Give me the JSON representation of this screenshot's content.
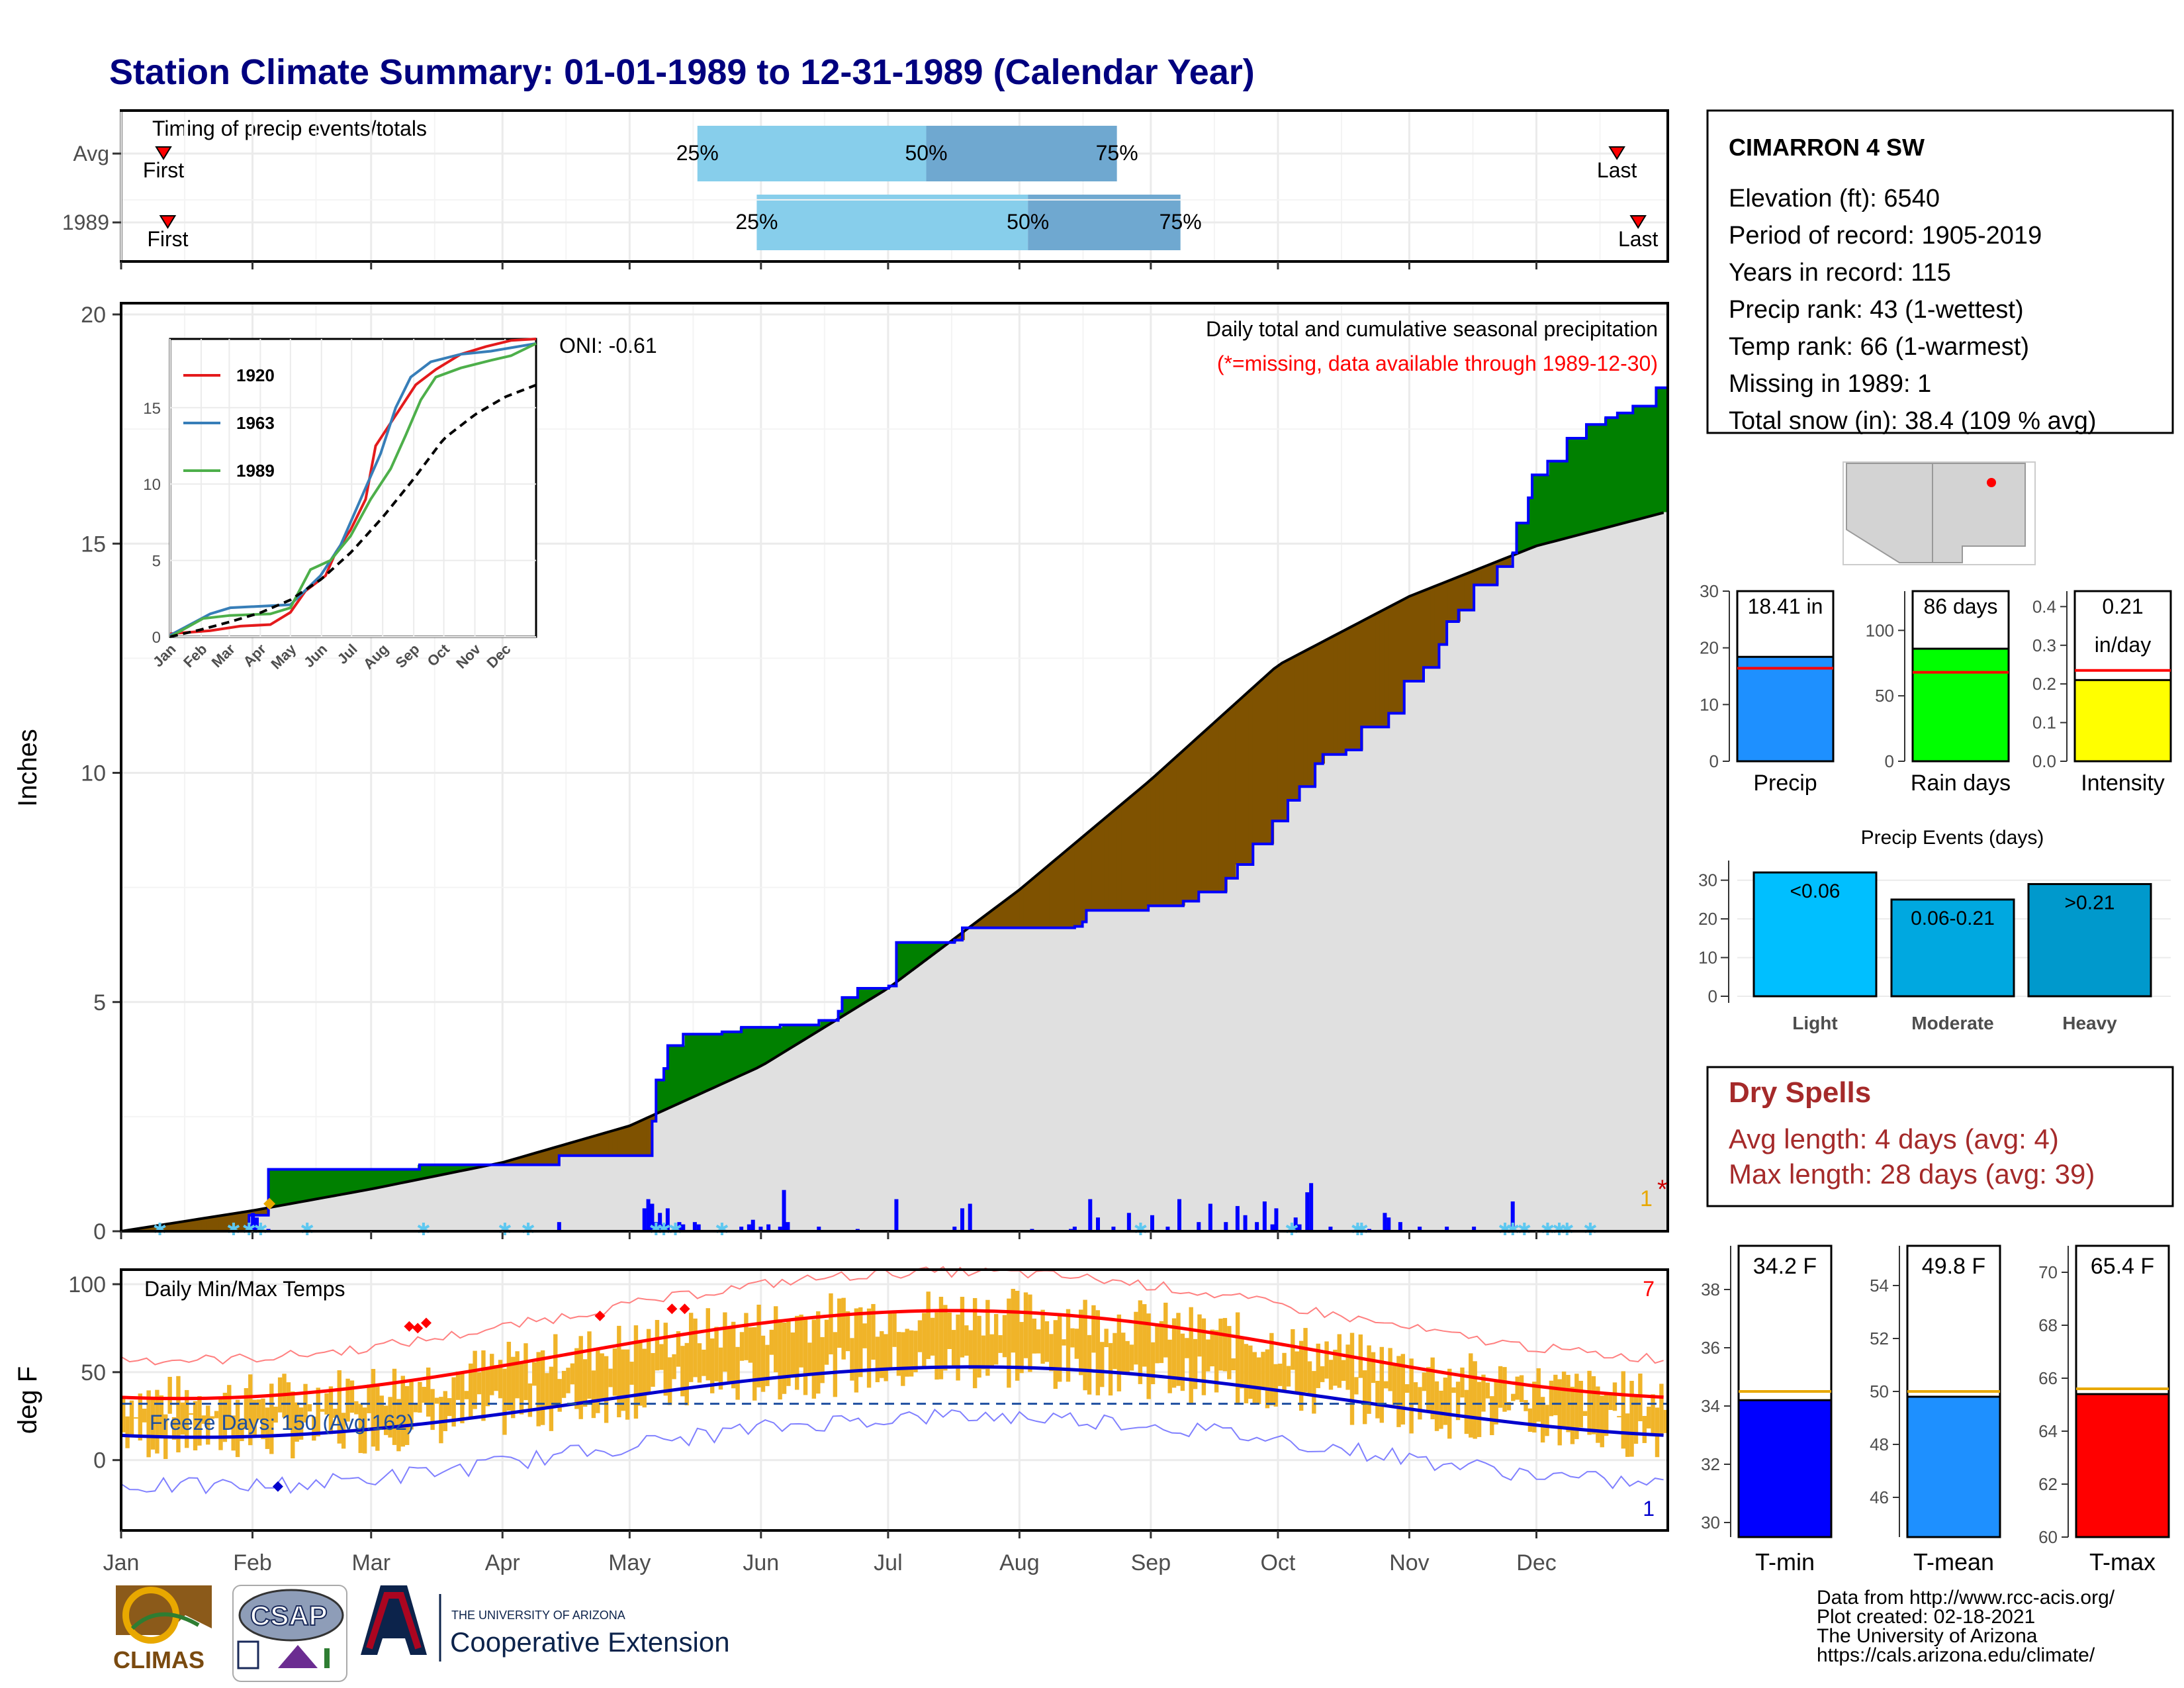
{
  "title": "Station Climate Summary: 01-01-1989 to 12-31-1989 (Calendar Year)",
  "colors": {
    "title": "#00007f",
    "green": "#008000",
    "brown": "#7f5200",
    "gray_fill": "#e0e0e0",
    "blue_line": "#0000ff",
    "light_blue": "#87ceeb",
    "mid_blue": "#6fa8d0",
    "dry_red": "#a52a2a",
    "orange": "#e8a800",
    "red": "#ff0000"
  },
  "timing": {
    "title": "Timing of precip events/totals",
    "rows": [
      {
        "label": "Avg",
        "first_label": "First",
        "last_label": "Last",
        "first_day": 10,
        "last_day": 353,
        "p25": 136,
        "p50": 190,
        "p75": 235,
        "q25_label": "25%",
        "q50_label": "50%",
        "q75_label": "75%"
      },
      {
        "label": "1989",
        "first_label": "First",
        "last_label": "Last",
        "first_day": 11,
        "last_day": 358,
        "p25": 150,
        "p50": 214,
        "p75": 250,
        "q25_label": "25%",
        "q50_label": "50%",
        "q75_label": "75%"
      }
    ]
  },
  "precip_panel": {
    "ylabel": "Inches",
    "y_ticks": [
      "0",
      "5",
      "10",
      "15",
      "20"
    ],
    "ylim": [
      0,
      20
    ],
    "title": "Daily total and cumulative seasonal precipitation",
    "missing_note": "(*=missing, data available through 1989-12-30)",
    "oni": "ONI: -0.61",
    "missing_count": "1",
    "missing_marker": "*"
  },
  "inset": {
    "legend": [
      "1920",
      "1963",
      "1989"
    ],
    "y_ticks": [
      "0",
      "5",
      "10",
      "15"
    ],
    "x_ticks": [
      "Jan",
      "Feb",
      "Mar",
      "Apr",
      "May",
      "Jun",
      "Jul",
      "Aug",
      "Sep",
      "Oct",
      "Nov",
      "Dec"
    ],
    "series_colors": [
      "#e41a1c",
      "#377eb8",
      "#4daf4a"
    ]
  },
  "temp_panel": {
    "ylabel": "deg F",
    "title": "Daily Min/Max Temps",
    "y_ticks": [
      "0",
      "50",
      "100"
    ],
    "freeze_label": "Freeze Days: 150 (Avg:162)",
    "record_high_count": "7",
    "record_low_count": "1"
  },
  "months": [
    "Jan",
    "Feb",
    "Mar",
    "Apr",
    "May",
    "Jun",
    "Jul",
    "Aug",
    "Sep",
    "Oct",
    "Nov",
    "Dec"
  ],
  "station": {
    "name": "CIMARRON 4 SW",
    "lines": [
      "Elevation (ft): 6540",
      "Period of record: 1905-2019",
      "Years in record: 115",
      "Precip rank: 43 (1-wettest)",
      "Temp rank: 66 (1-warmest)",
      "Missing in 1989: 1",
      "Total snow (in): 38.4 (109 % avg)"
    ]
  },
  "mini_bars": [
    {
      "label": "Precip",
      "value_label": "18.41 in",
      "value": 18.41,
      "avg": 16.4,
      "ymax": 30,
      "ticks": [
        "0",
        "10",
        "20",
        "30"
      ],
      "tick_vals": [
        0,
        10,
        20,
        30
      ],
      "color": "#1e90ff"
    },
    {
      "label": "Rain days",
      "value_label": "86 days",
      "value": 86,
      "avg": 68,
      "ymax": 130,
      "ticks": [
        "0",
        "50",
        "100"
      ],
      "tick_vals": [
        0,
        50,
        100
      ],
      "color": "#00ff00"
    },
    {
      "label": "Intensity",
      "value_label": "0.21",
      "value_label2": "in/day",
      "value": 0.21,
      "avg": 0.235,
      "ymax": 0.44,
      "ticks": [
        "0.0",
        "0.1",
        "0.2",
        "0.3",
        "0.4"
      ],
      "tick_vals": [
        0,
        0.1,
        0.2,
        0.3,
        0.4
      ],
      "color": "#ffff00"
    }
  ],
  "precip_events": {
    "title": "Precip Events (days)",
    "ticks": [
      "0",
      "10",
      "20",
      "30"
    ],
    "tick_vals": [
      0,
      10,
      20,
      30
    ],
    "ymax": 32,
    "bars": [
      {
        "category": "Light",
        "bar_label": "<0.06",
        "value": 32,
        "color": "#00bfff"
      },
      {
        "category": "Moderate",
        "bar_label": "0.06-0.21",
        "value": 25,
        "color": "#00a8e0"
      },
      {
        "category": "Heavy",
        "bar_label": ">0.21",
        "value": 29,
        "color": "#0099cc"
      }
    ]
  },
  "dry_spells": {
    "title": "Dry Spells",
    "avg_line": "Avg length: 4 days (avg: 4)",
    "max_line": "Max length: 28 days (avg: 39)"
  },
  "temp_bars": [
    {
      "label": "T-min",
      "value_label": "34.2 F",
      "value": 34.2,
      "avg": 34.5,
      "min": 29.5,
      "max": 39.5,
      "ticks": [
        "30",
        "32",
        "34",
        "36",
        "38"
      ],
      "tick_vals": [
        30,
        32,
        34,
        36,
        38
      ],
      "color": "#0000ff"
    },
    {
      "label": "T-mean",
      "value_label": "49.8 F",
      "value": 49.8,
      "avg": 50.0,
      "min": 44.5,
      "max": 55.5,
      "ticks": [
        "46",
        "48",
        "50",
        "52",
        "54"
      ],
      "tick_vals": [
        46,
        48,
        50,
        52,
        54
      ],
      "color": "#1e90ff"
    },
    {
      "label": "T-max",
      "value_label": "65.4 F",
      "value": 65.4,
      "avg": 65.6,
      "min": 60,
      "max": 71,
      "ticks": [
        "60",
        "62",
        "64",
        "66",
        "68",
        "70"
      ],
      "tick_vals": [
        60,
        62,
        64,
        66,
        68,
        70
      ],
      "color": "#ff0000"
    }
  ],
  "footer": {
    "climas": "CLIMAS",
    "csap": "CSAP",
    "ua_small": "THE UNIVERSITY OF ARIZONA",
    "ua_big": "Cooperative Extension",
    "credits": [
      "Data from http://www.rcc-acis.org/",
      "Plot created: 02-18-2021",
      "The University of Arizona",
      "https://cals.arizona.edu/climate/"
    ]
  },
  "chart_data": {
    "type": "area",
    "title": "Daily total and cumulative seasonal precipitation",
    "ylabel": "Inches",
    "ylim": [
      0,
      20
    ],
    "cumulative_1989_steps": [
      [
        0,
        0
      ],
      [
        33,
        0.35
      ],
      [
        38,
        1.35
      ],
      [
        76,
        1.35
      ],
      [
        77,
        1.45
      ],
      [
        112,
        1.45
      ],
      [
        113,
        1.65
      ],
      [
        135,
        1.65
      ],
      [
        137,
        2.4
      ],
      [
        138,
        3.3
      ],
      [
        140,
        3.55
      ],
      [
        141,
        4.05
      ],
      [
        145,
        4.3
      ],
      [
        155,
        4.35
      ],
      [
        160,
        4.45
      ],
      [
        170,
        4.5
      ],
      [
        180,
        4.6
      ],
      [
        185,
        4.8
      ],
      [
        186,
        5.1
      ],
      [
        190,
        5.3
      ],
      [
        198,
        5.35
      ],
      [
        200,
        6.3
      ],
      [
        215,
        6.35
      ],
      [
        217,
        6.62
      ],
      [
        246,
        6.65
      ],
      [
        248,
        6.75
      ],
      [
        249,
        7.0
      ],
      [
        265,
        7.1
      ],
      [
        274,
        7.2
      ],
      [
        278,
        7.4
      ],
      [
        285,
        7.7
      ],
      [
        288,
        8.0
      ],
      [
        292,
        8.45
      ],
      [
        297,
        8.95
      ],
      [
        301,
        9.4
      ],
      [
        304,
        9.7
      ],
      [
        308,
        10.2
      ],
      [
        310,
        10.4
      ],
      [
        316,
        10.5
      ],
      [
        320,
        11.0
      ],
      [
        327,
        11.3
      ],
      [
        331,
        12.0
      ],
      [
        336,
        12.3
      ],
      [
        340,
        12.8
      ],
      [
        342,
        13.3
      ],
      [
        345,
        13.55
      ],
      [
        349,
        14.1
      ],
      [
        355,
        14.5
      ],
      [
        358,
        14.5
      ],
      [
        359,
        14.8
      ],
      [
        360,
        15.45
      ],
      [
        363,
        16.0
      ],
      [
        364,
        16.5
      ],
      [
        368,
        16.8
      ],
      [
        373,
        17.3
      ],
      [
        378,
        17.6
      ],
      [
        383,
        17.75
      ],
      [
        386,
        17.85
      ],
      [
        390,
        18.0
      ],
      [
        396,
        18.4
      ],
      [
        399,
        18.4
      ]
    ],
    "avg_cumulative": [
      [
        0,
        0
      ],
      [
        31,
        0.45
      ],
      [
        59,
        0.92
      ],
      [
        90,
        1.5
      ],
      [
        120,
        2.3
      ],
      [
        151,
        3.6
      ],
      [
        181,
        5.3
      ],
      [
        212,
        7.45
      ],
      [
        243,
        9.85
      ],
      [
        273,
        12.35
      ],
      [
        304,
        13.85
      ],
      [
        334,
        14.95
      ],
      [
        365,
        15.7
      ]
    ],
    "daily_precip": [
      [
        33,
        0.15
      ],
      [
        34,
        0.4
      ],
      [
        35,
        0.3
      ],
      [
        38,
        0.05
      ],
      [
        113,
        0.2
      ],
      [
        135,
        0.5
      ],
      [
        136,
        0.7
      ],
      [
        137,
        0.6
      ],
      [
        138,
        0.2
      ],
      [
        139,
        0.4
      ],
      [
        140,
        0.15
      ],
      [
        141,
        0.5
      ],
      [
        144,
        0.2
      ],
      [
        145,
        0.15
      ],
      [
        148,
        0.2
      ],
      [
        149,
        0.15
      ],
      [
        160,
        0.1
      ],
      [
        162,
        0.15
      ],
      [
        163,
        0.25
      ],
      [
        165,
        0.1
      ],
      [
        167,
        0.15
      ],
      [
        170,
        0.1
      ],
      [
        171,
        0.9
      ],
      [
        172,
        0.2
      ],
      [
        180,
        0.1
      ],
      [
        190,
        0.05
      ],
      [
        200,
        0.7
      ],
      [
        215,
        0.1
      ],
      [
        217,
        0.5
      ],
      [
        219,
        0.6
      ],
      [
        235,
        0.05
      ],
      [
        245,
        0.05
      ],
      [
        246,
        0.1
      ],
      [
        250,
        0.7
      ],
      [
        252,
        0.3
      ],
      [
        256,
        0.1
      ],
      [
        260,
        0.4
      ],
      [
        266,
        0.35
      ],
      [
        270,
        0.1
      ],
      [
        273,
        0.7
      ],
      [
        278,
        0.2
      ],
      [
        281,
        0.6
      ],
      [
        285,
        0.2
      ],
      [
        288,
        0.55
      ],
      [
        290,
        0.35
      ],
      [
        293,
        0.2
      ],
      [
        295,
        0.65
      ],
      [
        297,
        0.15
      ],
      [
        298,
        0.5
      ],
      [
        303,
        0.3
      ],
      [
        304,
        0.15
      ],
      [
        306,
        0.85
      ],
      [
        307,
        1.05
      ],
      [
        312,
        0.1
      ],
      [
        322,
        0.05
      ],
      [
        326,
        0.4
      ],
      [
        327,
        0.3
      ],
      [
        330,
        0.2
      ],
      [
        335,
        0.1
      ],
      [
        342,
        0.1
      ],
      [
        349,
        0.1
      ],
      [
        359,
        0.65
      ]
    ],
    "snow_days": [
      10,
      29,
      33,
      36,
      48,
      78,
      99,
      105,
      138,
      140,
      143,
      155,
      263,
      302,
      319,
      320,
      357,
      359,
      362,
      368,
      371,
      373,
      379
    ]
  }
}
